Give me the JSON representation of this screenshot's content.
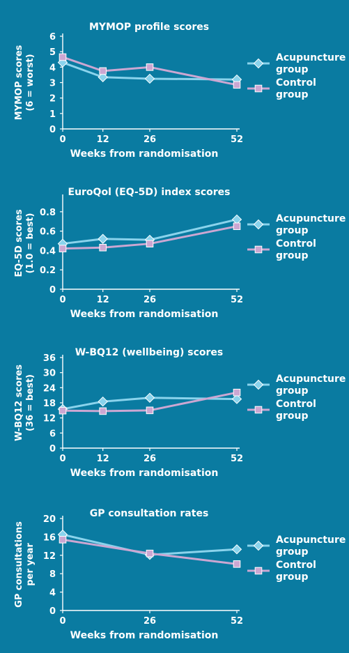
{
  "colors": {
    "background": "#0a7ba1",
    "text": "#ffffff",
    "acupuncture": "#8ad3ec",
    "control": "#cba7d2",
    "acupuncture_marker": "diamond",
    "control_marker": "square"
  },
  "chart_data": [
    {
      "type": "line",
      "title": "MYMOP profile scores",
      "xlabel": "Weeks from randomisation",
      "ylabel": [
        "MYMOP scores",
        "(6 = worst)"
      ],
      "x": [
        0,
        12,
        26,
        52
      ],
      "x_ticks": [
        "0",
        "12",
        "26",
        "52"
      ],
      "ylim": [
        0,
        6
      ],
      "y_ticks": [
        "0",
        "1",
        "2",
        "3",
        "4",
        "5",
        "6"
      ],
      "series": [
        {
          "name": "Acupuncture group",
          "name_lines": [
            "Acupuncture",
            "group"
          ],
          "values": [
            4.3,
            3.35,
            3.25,
            3.2
          ]
        },
        {
          "name": "Control group",
          "name_lines": [
            "Control",
            "group"
          ],
          "values": [
            4.65,
            3.75,
            4.0,
            2.85
          ]
        }
      ],
      "legend": "right",
      "grid": false
    },
    {
      "type": "line",
      "title": "EuroQol (EQ-5D) index scores",
      "xlabel": "Weeks from randomisation",
      "ylabel": [
        "EQ-5D scores",
        "(1.0 = best)"
      ],
      "x": [
        0,
        12,
        26,
        52
      ],
      "x_ticks": [
        "0",
        "12",
        "26",
        "52"
      ],
      "ylim": [
        0,
        0.95
      ],
      "y_ticks": [
        "0",
        "0.2",
        "0.4",
        "0.6",
        "0.8"
      ],
      "series": [
        {
          "name": "Acupuncture group",
          "name_lines": [
            "Acupuncture",
            "group"
          ],
          "values": [
            0.47,
            0.52,
            0.51,
            0.72
          ]
        },
        {
          "name": "Control group",
          "name_lines": [
            "Control",
            "group"
          ],
          "values": [
            0.42,
            0.43,
            0.47,
            0.65
          ]
        }
      ],
      "legend": "right",
      "grid": false
    },
    {
      "type": "line",
      "title": "W-BQ12 (wellbeing) scores",
      "xlabel": "Weeks from randomisation",
      "ylabel": [
        "W-BQ12 scores",
        "(36 = best)"
      ],
      "x": [
        0,
        12,
        26,
        52
      ],
      "x_ticks": [
        "0",
        "12",
        "26",
        "52"
      ],
      "ylim": [
        0,
        36
      ],
      "y_ticks": [
        "0",
        "6",
        "12",
        "18",
        "24",
        "30",
        "36"
      ],
      "series": [
        {
          "name": "Acupuncture group",
          "name_lines": [
            "Acupuncture",
            "group"
          ],
          "values": [
            15.5,
            18.5,
            20.0,
            19.5
          ]
        },
        {
          "name": "Control group",
          "name_lines": [
            "Control",
            "group"
          ],
          "values": [
            14.9,
            14.7,
            15.0,
            22.1
          ]
        }
      ],
      "legend": "right",
      "grid": false
    },
    {
      "type": "line",
      "title": "GP consultation rates",
      "xlabel": "Weeks from randomisation",
      "ylabel": [
        "GP consultations",
        "per year"
      ],
      "x": [
        0,
        26,
        52
      ],
      "x_ticks": [
        "0",
        "26",
        "52"
      ],
      "ylim": [
        0,
        20
      ],
      "y_ticks": [
        "0",
        "4",
        "8",
        "12",
        "16",
        "20"
      ],
      "series": [
        {
          "name": "Acupuncture group",
          "name_lines": [
            "Acupuncture",
            "group"
          ],
          "values": [
            16.5,
            12.1,
            13.3
          ]
        },
        {
          "name": "Control group",
          "name_lines": [
            "Control",
            "group"
          ],
          "values": [
            15.4,
            12.4,
            10.1
          ]
        }
      ],
      "legend": "right",
      "grid": false
    }
  ]
}
